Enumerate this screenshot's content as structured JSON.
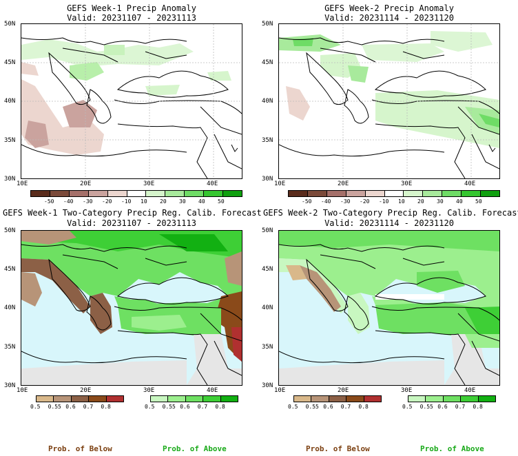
{
  "panels": [
    {
      "title": "GEFS Week-1 Precip Anomaly",
      "valid": "Valid: 20231107 - 20231113",
      "type": "anomaly"
    },
    {
      "title": "GEFS Week-2 Precip Anomaly",
      "valid": "Valid: 20231114 - 20231120",
      "type": "anomaly"
    },
    {
      "title": "GEFS Week-1 Two-Category Precip Reg. Calib. Forecast",
      "valid": "Valid: 20231107 - 20231113",
      "type": "probability"
    },
    {
      "title": "GEFS Week-2 Two-Category Precip Reg. Calib. Forecast",
      "valid": "Valid: 20231114 - 20231120",
      "type": "probability"
    }
  ],
  "axes": {
    "lat_labels": [
      "50N",
      "45N",
      "40N",
      "35N",
      "30N"
    ],
    "lon_labels": [
      "10E",
      "20E",
      "30E",
      "40E"
    ]
  },
  "anomaly_colorbar": {
    "labels": [
      "-50",
      "-40",
      "-30",
      "-20",
      "-10",
      "10",
      "20",
      "30",
      "40",
      "50"
    ],
    "colors": [
      "#5a2c1c",
      "#7b4a3a",
      "#a5706a",
      "#caa39e",
      "#ecd6cf",
      "#ffffff",
      "#d6f5cc",
      "#a8ea9c",
      "#6fdc66",
      "#35c630",
      "#10a010"
    ]
  },
  "prob_below_colorbar": {
    "labels": [
      "0.5",
      "0.55",
      "0.6",
      "0.7",
      "0.8"
    ],
    "colors": [
      "#d9b88a",
      "#b79478",
      "#8c6046",
      "#8a4a1a",
      "#b03030"
    ]
  },
  "prob_above_colorbar": {
    "labels": [
      "0.5",
      "0.55",
      "0.6",
      "0.7",
      "0.8"
    ],
    "colors": [
      "#c8f7c0",
      "#9cef8e",
      "#6ee062",
      "#3ecf36",
      "#12b012"
    ]
  },
  "legend": {
    "below_label": "Prob. of Below",
    "above_label": "Prob. of Above",
    "below_color": "#7b3f10",
    "above_color": "#1aaa1a"
  },
  "colors": {
    "sea": "#d8f6fb",
    "neutral_land": "#e6e6e6",
    "dry": "#c9a08a",
    "wet": "#9ef08f"
  }
}
